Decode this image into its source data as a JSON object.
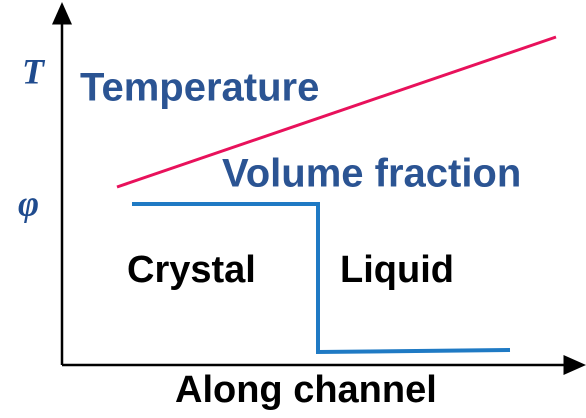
{
  "axes": {
    "y_labels": [
      "T",
      "φ"
    ],
    "x_label": "Along channel"
  },
  "curves": {
    "temperature": "Temperature",
    "volume_fraction": "Volume fraction"
  },
  "regions": {
    "crystal": "Crystal",
    "liquid": "Liquid"
  }
}
